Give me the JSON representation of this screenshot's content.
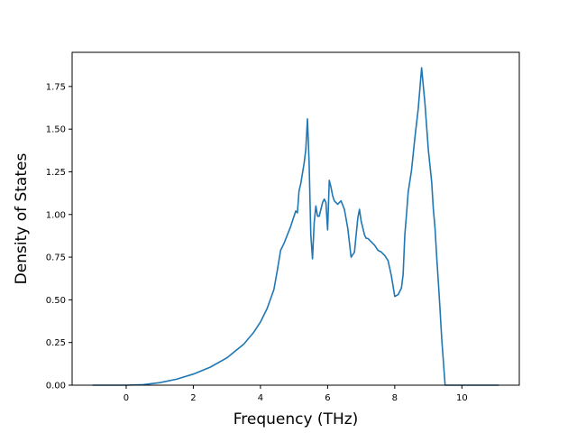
{
  "chart_data": {
    "type": "line",
    "title": "",
    "xlabel": "Frequency (THz)",
    "ylabel": "Density of States",
    "xlim": [
      -1.61,
      11.71
    ],
    "ylim": [
      0,
      1.95
    ],
    "x_ticks": [
      0,
      2,
      4,
      6,
      8,
      10
    ],
    "y_ticks": [
      0.0,
      0.25,
      0.5,
      0.75,
      1.0,
      1.25,
      1.5,
      1.75
    ],
    "x_tick_labels": [
      "0",
      "2",
      "4",
      "6",
      "8",
      "10"
    ],
    "y_tick_labels": [
      "0.00",
      "0.25",
      "0.50",
      "0.75",
      "1.00",
      "1.25",
      "1.50",
      "1.75"
    ],
    "grid": false,
    "series": [
      {
        "color": "#1f77b4",
        "x": [
          -1.0,
          0.0,
          0.5,
          1.0,
          1.5,
          2.0,
          2.5,
          3.0,
          3.5,
          3.8,
          4.0,
          4.2,
          4.4,
          4.5,
          4.6,
          4.7,
          4.8,
          4.9,
          5.0,
          5.05,
          5.1,
          5.15,
          5.2,
          5.25,
          5.3,
          5.35,
          5.4,
          5.45,
          5.5,
          5.55,
          5.6,
          5.65,
          5.7,
          5.75,
          5.8,
          5.85,
          5.9,
          5.95,
          6.0,
          6.05,
          6.1,
          6.15,
          6.2,
          6.3,
          6.4,
          6.5,
          6.6,
          6.7,
          6.8,
          6.9,
          6.95,
          7.0,
          7.1,
          7.15,
          7.2,
          7.3,
          7.4,
          7.5,
          7.6,
          7.7,
          7.8,
          7.9,
          8.0,
          8.1,
          8.2,
          8.25,
          8.3,
          8.35,
          8.4,
          8.5,
          8.6,
          8.7,
          8.8,
          8.9,
          9.0,
          9.1,
          9.15,
          9.2,
          9.25,
          9.3,
          9.35,
          9.4,
          9.5,
          9.6,
          9.7,
          9.8,
          9.9,
          10.0,
          10.05,
          10.1,
          10.2,
          11.1
        ],
        "y": [
          0.0,
          0.0,
          0.003,
          0.015,
          0.035,
          0.065,
          0.105,
          0.16,
          0.24,
          0.31,
          0.37,
          0.45,
          0.56,
          0.67,
          0.79,
          0.83,
          0.88,
          0.93,
          0.99,
          1.02,
          1.01,
          1.14,
          1.18,
          1.24,
          1.3,
          1.38,
          1.56,
          1.3,
          0.88,
          0.74,
          0.95,
          1.05,
          0.99,
          0.99,
          1.03,
          1.07,
          1.09,
          1.07,
          0.91,
          1.2,
          1.16,
          1.11,
          1.08,
          1.06,
          1.08,
          1.03,
          0.92,
          0.75,
          0.78,
          0.98,
          1.03,
          0.96,
          0.88,
          0.86,
          0.86,
          0.84,
          0.82,
          0.79,
          0.78,
          0.76,
          0.73,
          0.64,
          0.52,
          0.53,
          0.57,
          0.65,
          0.88,
          1.0,
          1.13,
          1.26,
          1.45,
          1.62,
          1.86,
          1.65,
          1.38,
          1.19,
          1.03,
          0.92,
          0.75,
          0.6,
          0.44,
          0.27,
          0.0,
          0.0,
          0.0,
          0.0,
          0.0,
          0.0,
          0.0,
          0.0,
          0.0,
          0.0
        ]
      }
    ]
  }
}
